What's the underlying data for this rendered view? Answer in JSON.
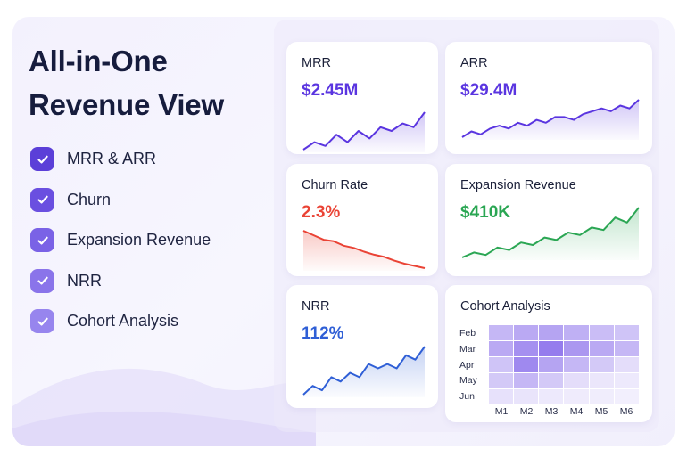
{
  "hero": {
    "title_line1": "All-in-One",
    "title_line2": "Revenue View"
  },
  "features": [
    {
      "label": "MRR & ARR",
      "icon": "check-icon",
      "color": "#5b3fd8"
    },
    {
      "label": "Churn",
      "icon": "check-icon",
      "color": "#6a4fe0"
    },
    {
      "label": "Expansion Revenue",
      "icon": "check-icon",
      "color": "#7a62e6"
    },
    {
      "label": "NRR",
      "icon": "check-icon",
      "color": "#8a74ea"
    },
    {
      "label": "Cohort Analysis",
      "icon": "check-icon",
      "color": "#9785ee"
    }
  ],
  "cards": {
    "mrr": {
      "title": "MRR",
      "value": "$2.45M",
      "color": "#5a35e0",
      "trend": [
        2,
        4,
        3,
        6,
        4,
        7,
        5,
        8,
        7,
        9,
        8,
        12
      ]
    },
    "arr": {
      "title": "ARR",
      "value": "$29.4M",
      "color": "#5a35e0",
      "trend": [
        2,
        4,
        3,
        5,
        6,
        5,
        7,
        6,
        8,
        7,
        9,
        9,
        8,
        10,
        11,
        12,
        11,
        13,
        12,
        15
      ]
    },
    "churn": {
      "title": "Churn Rate",
      "value": "2.3%",
      "color": "#ea4335",
      "trend": [
        10,
        9.4,
        8.8,
        8.6,
        8,
        7.7,
        7.2,
        6.8,
        6.5,
        6,
        5.6,
        5.3,
        5
      ]
    },
    "expansion": {
      "title": "Expansion Revenue",
      "value": "$410K",
      "color": "#2aa653",
      "trend": [
        2,
        3,
        2.5,
        4,
        3.5,
        5,
        4.5,
        6,
        5.5,
        7,
        6.5,
        8,
        7.5,
        10,
        9,
        12
      ]
    },
    "nrr": {
      "title": "NRR",
      "value": "112%",
      "color": "#2f5fd6",
      "trend": [
        2,
        4,
        3,
        6,
        5,
        7,
        6,
        9,
        8,
        9,
        8,
        11,
        10,
        13
      ]
    },
    "cohort": {
      "title": "Cohort Analysis",
      "rows": [
        "Feb",
        "Mar",
        "Apr",
        "May",
        "Jun"
      ],
      "cols": [
        "M1",
        "M2",
        "M3",
        "M4",
        "M5",
        "M6"
      ],
      "intensity": [
        [
          0.45,
          0.55,
          0.6,
          0.5,
          0.4,
          0.35
        ],
        [
          0.55,
          0.75,
          0.9,
          0.7,
          0.55,
          0.45
        ],
        [
          0.35,
          0.8,
          0.6,
          0.45,
          0.3,
          0.15
        ],
        [
          0.3,
          0.45,
          0.3,
          0.15,
          0.08,
          0.05
        ],
        [
          0.12,
          0.1,
          0.06,
          0.04,
          0.03,
          0.02
        ]
      ]
    }
  }
}
